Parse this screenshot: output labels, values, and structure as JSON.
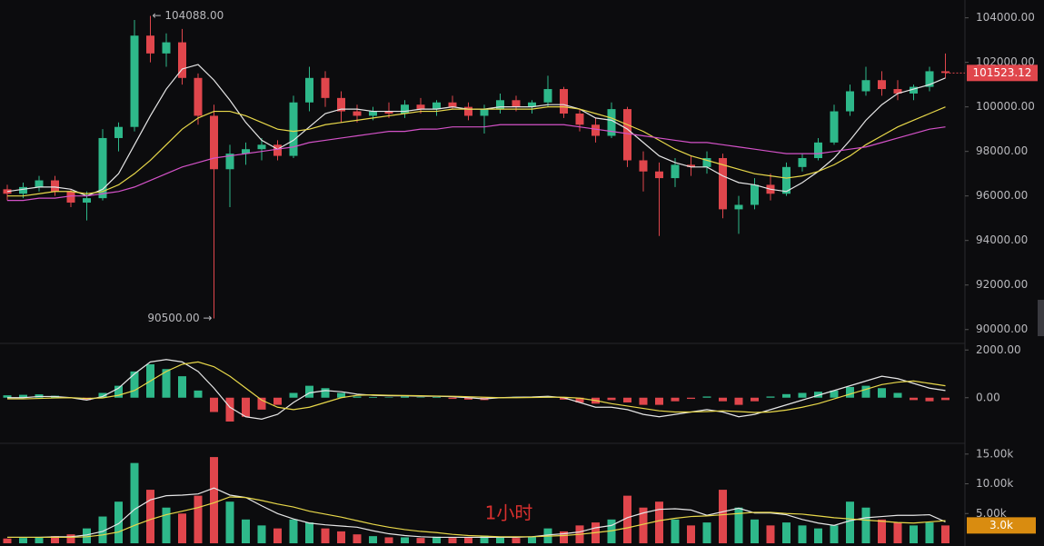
{
  "chart_data": [
    {
      "type": "candlestick",
      "up_color": "#2eb88a",
      "down_color": "#e0464c",
      "ylim": [
        89500,
        104800
      ],
      "yticks": [
        {
          "value": 90000,
          "label": "90000.00"
        },
        {
          "value": 92000,
          "label": "92000.00"
        },
        {
          "value": 94000,
          "label": "94000.00"
        },
        {
          "value": 96000,
          "label": "96000.00"
        },
        {
          "value": 98000,
          "label": "98000.00"
        },
        {
          "value": 100000,
          "label": "100000.00"
        },
        {
          "value": 102000,
          "label": "102000.00"
        },
        {
          "value": 104000,
          "label": "104000.00"
        }
      ],
      "ohlc": [
        [
          96300,
          96500,
          95800,
          96100
        ],
        [
          96100,
          96600,
          95900,
          96400
        ],
        [
          96400,
          96900,
          96200,
          96700
        ],
        [
          96700,
          96900,
          96000,
          96200
        ],
        [
          96200,
          96300,
          95500,
          95700
        ],
        [
          95700,
          96200,
          94900,
          95900
        ],
        [
          95900,
          99000,
          95800,
          98600
        ],
        [
          98600,
          99300,
          98000,
          99100
        ],
        [
          99100,
          103900,
          98900,
          103200
        ],
        [
          103200,
          104088,
          102000,
          102400
        ],
        [
          102400,
          103300,
          101800,
          102900
        ],
        [
          102900,
          103500,
          101000,
          101300
        ],
        [
          101300,
          101500,
          99200,
          99600
        ],
        [
          99600,
          100100,
          90500,
          97200
        ],
        [
          97200,
          98300,
          95500,
          97900
        ],
        [
          97900,
          98400,
          97400,
          98100
        ],
        [
          98100,
          98600,
          97600,
          98300
        ],
        [
          98300,
          98500,
          97600,
          97800
        ],
        [
          97800,
          100500,
          97700,
          100200
        ],
        [
          100200,
          101800,
          99800,
          101300
        ],
        [
          101300,
          101600,
          100000,
          100400
        ],
        [
          100400,
          100700,
          99300,
          99800
        ],
        [
          99800,
          100100,
          99300,
          99600
        ],
        [
          99600,
          100000,
          99400,
          99800
        ],
        [
          99800,
          100200,
          99500,
          99700
        ],
        [
          99700,
          100300,
          99500,
          100100
        ],
        [
          100100,
          100400,
          99700,
          99900
        ],
        [
          99900,
          100300,
          99600,
          100200
        ],
        [
          100200,
          100500,
          99900,
          100000
        ],
        [
          100000,
          100200,
          99400,
          99600
        ],
        [
          99600,
          100100,
          98800,
          99900
        ],
        [
          99900,
          100600,
          99700,
          100300
        ],
        [
          100300,
          100500,
          99800,
          100000
        ],
        [
          100000,
          100300,
          99700,
          100200
        ],
        [
          100200,
          101400,
          100000,
          100800
        ],
        [
          100800,
          100900,
          99500,
          99700
        ],
        [
          99700,
          99900,
          98900,
          99200
        ],
        [
          99200,
          99500,
          98400,
          98700
        ],
        [
          98700,
          100200,
          98600,
          99900
        ],
        [
          99900,
          100000,
          97300,
          97600
        ],
        [
          97600,
          98000,
          96200,
          97100
        ],
        [
          97100,
          97500,
          94200,
          96800
        ],
        [
          96800,
          97700,
          96400,
          97400
        ],
        [
          97400,
          97800,
          96900,
          97300
        ],
        [
          97300,
          98000,
          97000,
          97700
        ],
        [
          97700,
          97900,
          95000,
          95400
        ],
        [
          95400,
          96000,
          94300,
          95600
        ],
        [
          95600,
          96800,
          95400,
          96500
        ],
        [
          96500,
          97000,
          95800,
          96100
        ],
        [
          96100,
          97500,
          96000,
          97300
        ],
        [
          97300,
          97900,
          97100,
          97700
        ],
        [
          97700,
          98600,
          97600,
          98400
        ],
        [
          98400,
          100100,
          98300,
          99800
        ],
        [
          99800,
          101000,
          99600,
          100700
        ],
        [
          100700,
          101800,
          100500,
          101200
        ],
        [
          101200,
          101600,
          100500,
          100800
        ],
        [
          100800,
          101200,
          100300,
          100600
        ],
        [
          100600,
          101000,
          100300,
          100900
        ],
        [
          100900,
          101800,
          100700,
          101600
        ],
        [
          101600,
          102400,
          101300,
          101523.12
        ]
      ],
      "series": [
        {
          "color": "#e6e6e6",
          "values": [
            96200,
            96300,
            96400,
            96400,
            96300,
            96000,
            96300,
            97000,
            98300,
            99600,
            100800,
            101700,
            101900,
            101200,
            100300,
            99300,
            98500,
            98100,
            98500,
            99100,
            99700,
            99900,
            99900,
            99800,
            99800,
            99800,
            99900,
            99900,
            100000,
            99900,
            99900,
            100000,
            100000,
            100000,
            100100,
            100100,
            99900,
            99500,
            99400,
            99000,
            98400,
            97800,
            97500,
            97300,
            97300,
            96900,
            96600,
            96500,
            96300,
            96200,
            96600,
            97100,
            97700,
            98500,
            99400,
            100100,
            100600,
            100800,
            101000,
            101300
          ]
        },
        {
          "color": "#e8d84a",
          "values": [
            96000,
            96000,
            96100,
            96200,
            96200,
            96100,
            96200,
            96500,
            97000,
            97600,
            98300,
            99000,
            99500,
            99800,
            99800,
            99600,
            99300,
            99000,
            98900,
            99000,
            99200,
            99300,
            99400,
            99500,
            99600,
            99700,
            99800,
            99800,
            99900,
            99900,
            99900,
            99900,
            99900,
            99900,
            100000,
            100000,
            99900,
            99700,
            99500,
            99200,
            98900,
            98500,
            98100,
            97800,
            97600,
            97400,
            97200,
            97000,
            96900,
            96800,
            96900,
            97100,
            97400,
            97800,
            98300,
            98700,
            99100,
            99400,
            99700,
            100000
          ]
        },
        {
          "color": "#d452c8",
          "values": [
            95800,
            95800,
            95900,
            95900,
            96000,
            96000,
            96100,
            96200,
            96400,
            96700,
            97000,
            97300,
            97500,
            97700,
            97800,
            97900,
            98000,
            98100,
            98200,
            98400,
            98500,
            98600,
            98700,
            98800,
            98900,
            98900,
            99000,
            99000,
            99100,
            99100,
            99100,
            99200,
            99200,
            99200,
            99200,
            99200,
            99100,
            99000,
            98900,
            98800,
            98700,
            98600,
            98500,
            98400,
            98400,
            98300,
            98200,
            98100,
            98000,
            97900,
            97900,
            97900,
            98000,
            98100,
            98200,
            98400,
            98600,
            98800,
            99000,
            99100
          ]
        }
      ],
      "high_marker": {
        "value": 104088,
        "label": "← 104088.00"
      },
      "low_marker": {
        "value": 90500,
        "label": "90500.00 →"
      },
      "last_price": 101523.12
    },
    {
      "type": "macd",
      "up_color": "#2eb88a",
      "down_color": "#e0464c",
      "ylim": [
        -1800,
        2200
      ],
      "yticks": [
        {
          "value": 0,
          "label": "0.00"
        },
        {
          "value": 2000,
          "label": "2000.00"
        }
      ],
      "values": [
        100,
        120,
        140,
        80,
        0,
        -100,
        200,
        500,
        1100,
        1400,
        1200,
        900,
        300,
        -600,
        -1000,
        -800,
        -500,
        -300,
        200,
        500,
        400,
        200,
        50,
        30,
        20,
        50,
        20,
        30,
        -50,
        -80,
        -100,
        0,
        40,
        20,
        50,
        -80,
        -200,
        -250,
        -100,
        -200,
        -300,
        -300,
        -150,
        -50,
        50,
        -150,
        -300,
        -150,
        50,
        150,
        200,
        250,
        300,
        450,
        500,
        400,
        200,
        -100,
        -150,
        -100
      ],
      "series": [
        {
          "color": "#e6e6e6",
          "values": [
            0,
            0,
            50,
            50,
            0,
            -100,
            50,
            400,
            1000,
            1500,
            1600,
            1500,
            1100,
            400,
            -400,
            -800,
            -900,
            -700,
            -200,
            200,
            300,
            250,
            150,
            100,
            80,
            80,
            60,
            60,
            40,
            0,
            -50,
            0,
            20,
            30,
            60,
            0,
            -200,
            -400,
            -400,
            -500,
            -700,
            -800,
            -700,
            -600,
            -500,
            -600,
            -800,
            -700,
            -500,
            -300,
            -100,
            100,
            300,
            500,
            700,
            900,
            800,
            600,
            400,
            300
          ]
        },
        {
          "color": "#e8d84a",
          "values": [
            -50,
            -50,
            -30,
            -10,
            0,
            -30,
            -10,
            100,
            300,
            700,
            1100,
            1400,
            1500,
            1300,
            900,
            400,
            -100,
            -400,
            -500,
            -400,
            -200,
            0,
            100,
            120,
            100,
            90,
            80,
            70,
            60,
            40,
            20,
            0,
            0,
            10,
            20,
            20,
            -20,
            -120,
            -250,
            -350,
            -450,
            -550,
            -600,
            -600,
            -580,
            -550,
            -580,
            -620,
            -600,
            -520,
            -400,
            -250,
            -50,
            150,
            350,
            550,
            650,
            700,
            600,
            500
          ]
        }
      ]
    },
    {
      "type": "volume",
      "up_color": "#2eb88a",
      "down_color": "#e0464c",
      "ylim": [
        0,
        16500
      ],
      "yticks": [
        {
          "value": 5000,
          "label": "5.00k"
        },
        {
          "value": 10000,
          "label": "10.00k"
        },
        {
          "value": 15000,
          "label": "15.00k"
        }
      ],
      "values": [
        800,
        900,
        1000,
        1200,
        1500,
        2500,
        4500,
        7000,
        13500,
        9000,
        6000,
        5000,
        8000,
        14500,
        7000,
        4000,
        3000,
        2500,
        4000,
        3500,
        2500,
        2000,
        1500,
        1200,
        1000,
        1000,
        900,
        1100,
        900,
        1000,
        1300,
        1000,
        900,
        1100,
        2500,
        2000,
        3000,
        3500,
        4000,
        8000,
        6000,
        7000,
        4000,
        3000,
        3500,
        9000,
        6000,
        4000,
        3000,
        3500,
        3000,
        2500,
        3000,
        7000,
        6000,
        4000,
        3500,
        3000,
        3500,
        3000
      ],
      "series": [
        {
          "color": "#e6e6e6",
          "values": [
            1000,
            1000,
            1000,
            1100,
            1100,
            1400,
            2000,
            3300,
            5700,
            7300,
            8000,
            8100,
            8300,
            9300,
            8100,
            7700,
            6300,
            5000,
            4100,
            3400,
            3100,
            2900,
            2700,
            2100,
            1600,
            1300,
            1100,
            1000,
            1000,
            1000,
            1000,
            1000,
            1000,
            1100,
            1400,
            1600,
            1900,
            2600,
            3000,
            4300,
            5100,
            5700,
            5800,
            5600,
            4700,
            5300,
            5900,
            5100,
            5100,
            4800,
            4000,
            3400,
            3000,
            3800,
            4300,
            4500,
            4700,
            4700,
            4800,
            3600
          ]
        },
        {
          "color": "#e8d84a",
          "values": [
            1000,
            1000,
            1000,
            1000,
            1000,
            1100,
            1400,
            1900,
            3000,
            4000,
            4800,
            5400,
            6000,
            6800,
            7800,
            7700,
            7200,
            6600,
            6100,
            5400,
            4900,
            4400,
            3800,
            3200,
            2700,
            2300,
            2000,
            1800,
            1500,
            1300,
            1200,
            1100,
            1100,
            1100,
            1200,
            1300,
            1500,
            1800,
            2100,
            2600,
            3200,
            3800,
            4200,
            4500,
            4600,
            4800,
            5000,
            5200,
            5200,
            5000,
            4900,
            4600,
            4300,
            4100,
            3900,
            3700,
            3500,
            3400,
            3600,
            3800
          ]
        }
      ],
      "current_volume": {
        "value": 3000,
        "label": "3.0k"
      },
      "watermark": "1小时"
    }
  ]
}
